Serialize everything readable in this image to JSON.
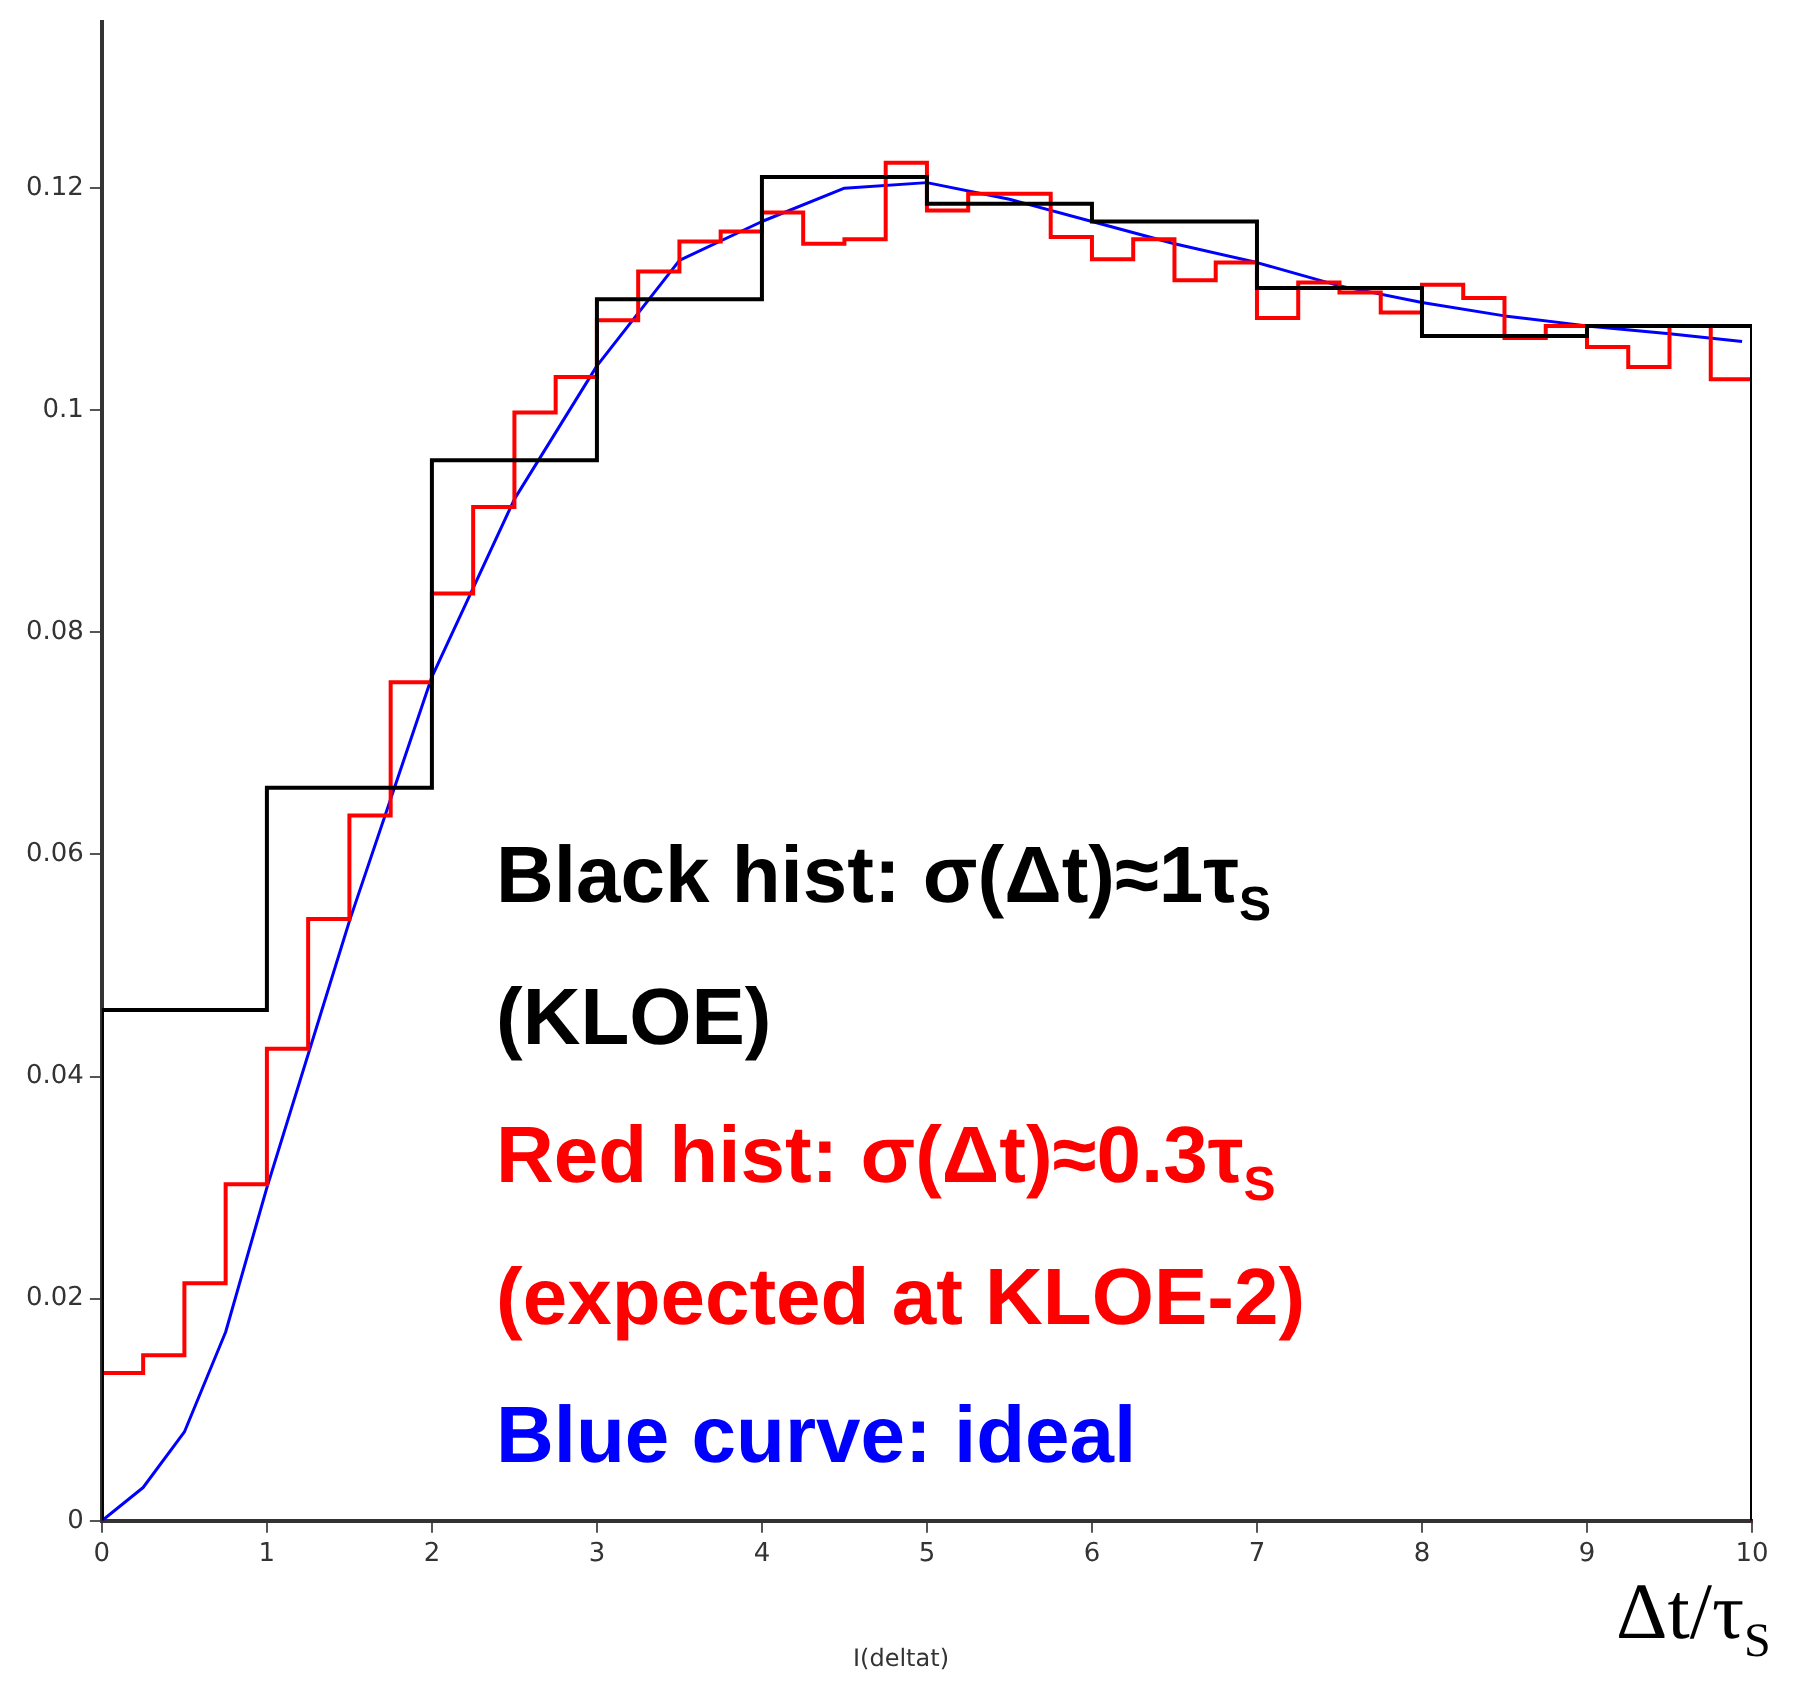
{
  "chart_data": {
    "type": "histogram",
    "xlabel": "I(deltat)",
    "xlim": [
      0,
      10
    ],
    "xticks": [
      0,
      1,
      2,
      3,
      4,
      5,
      6,
      7,
      8,
      9,
      10
    ],
    "ylim": [
      0,
      0.135
    ],
    "yticks": [
      0,
      0.02,
      0.04,
      0.06,
      0.08,
      0.1,
      0.12
    ],
    "grid": false,
    "legend": false,
    "series": [
      {
        "color": "#000000",
        "bins": [
          0,
          1,
          2,
          3,
          4,
          5,
          6,
          7,
          8,
          9,
          10
        ],
        "values": [
          0.046,
          0.066,
          0.0955,
          0.11,
          0.121,
          0.1186,
          0.117,
          0.111,
          0.1067,
          0.1076
        ]
      },
      {
        "color": "#ff0000",
        "bins": [
          0,
          0.25,
          0.5,
          0.75,
          1,
          1.25,
          1.5,
          1.75,
          2,
          2.25,
          2.5,
          2.75,
          3,
          3.25,
          3.5,
          3.75,
          4,
          4.25,
          4.5,
          4.75,
          5,
          5.25,
          5.5,
          5.75,
          6,
          6.25,
          6.5,
          6.75,
          7,
          7.25,
          7.5,
          7.75,
          8,
          8.25,
          8.5,
          8.75,
          9,
          9.25,
          9.5,
          9.75,
          10
        ],
        "values": [
          0.0133,
          0.0149,
          0.0214,
          0.0303,
          0.0425,
          0.0542,
          0.0635,
          0.0755,
          0.0835,
          0.0913,
          0.0998,
          0.103,
          0.1081,
          0.1125,
          0.1152,
          0.1161,
          0.1178,
          0.115,
          0.1154,
          0.1223,
          0.118,
          0.1195,
          0.1195,
          0.1156,
          0.1136,
          0.1154,
          0.1117,
          0.1133,
          0.1083,
          0.1115,
          0.1106,
          0.1088,
          0.1113,
          0.1101,
          0.1065,
          0.1076,
          0.1057,
          0.1039,
          0.1076,
          0.1028
        ]
      },
      {
        "type": "line",
        "color": "#0000ff",
        "x": [
          0,
          0.25,
          0.5,
          0.75,
          1,
          1.5,
          2,
          2.5,
          3,
          3.5,
          4,
          4.5,
          5,
          5.5,
          6,
          6.5,
          7,
          7.5,
          8,
          8.5,
          9,
          9.5,
          9.94
        ],
        "values": [
          0,
          0.003,
          0.008,
          0.017,
          0.03,
          0.054,
          0.076,
          0.092,
          0.104,
          0.1135,
          0.117,
          0.12,
          0.1205,
          0.119,
          0.117,
          0.115,
          0.1133,
          0.1112,
          0.1097,
          0.1085,
          0.1076,
          0.1069,
          0.1062
        ]
      }
    ],
    "annotations": [
      "Black hist: σ(Δt)≈1τ$_{S}$\n(KLOE)",
      "Red hist: σ(Δt)≈0.3τ$_{S}$\n(expected at KLOE-2)",
      "Blue curve: ideal",
      "Δt/τ$_{S}$"
    ]
  }
}
